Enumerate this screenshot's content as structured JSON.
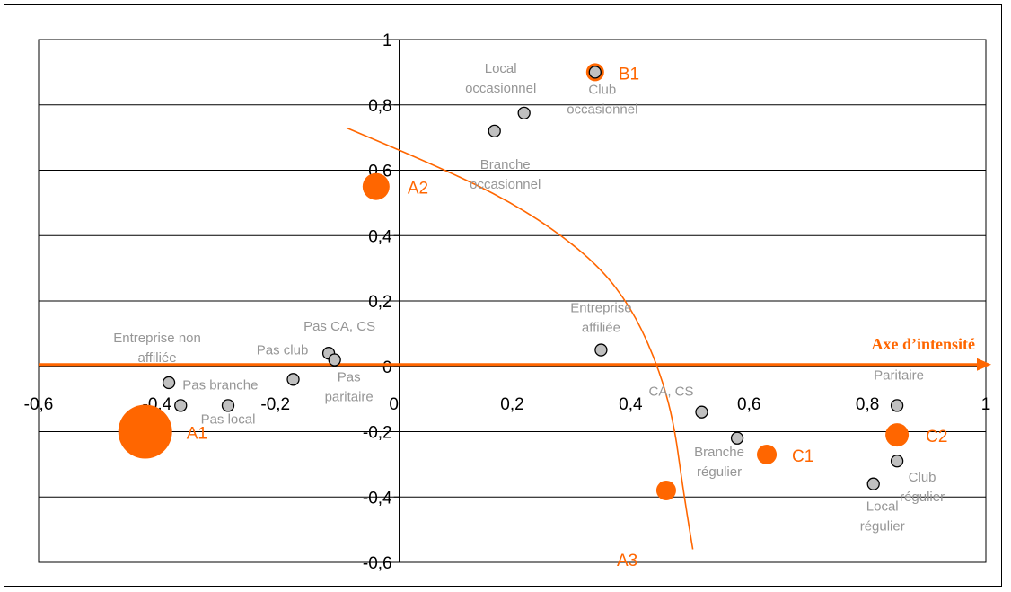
{
  "chart_data": {
    "type": "scatter",
    "title": "",
    "xlabel": "",
    "ylabel": "",
    "xlim": [
      -0.6,
      1
    ],
    "ylim": [
      -0.6,
      1
    ],
    "x_ticks": [
      "-0,6",
      "-0,4",
      "-0,2",
      "0",
      "0,2",
      "0,4",
      "0,6",
      "0,8",
      "1"
    ],
    "y_ticks": [
      "-0,6",
      "-0,4",
      "-0,2",
      "0",
      "0,2",
      "0,4",
      "0,6",
      "0,8",
      "1"
    ],
    "grid": "horizontal",
    "intensity_axis": {
      "label": "Axe d’intensité",
      "color": "#ff6600"
    },
    "points": [
      {
        "x": -0.38,
        "y": -0.05,
        "lines": [
          "Entreprise non",
          "affiliée"
        ]
      },
      {
        "x": -0.36,
        "y": -0.12,
        "lines": [
          "Pas branche"
        ]
      },
      {
        "x": -0.28,
        "y": -0.12,
        "lines": [
          "Pas local"
        ]
      },
      {
        "x": -0.17,
        "y": -0.04,
        "lines": [
          "Pas club"
        ]
      },
      {
        "x": -0.11,
        "y": 0.04,
        "lines": [
          "Pas CA, CS"
        ]
      },
      {
        "x": -0.1,
        "y": 0.02,
        "lines": [
          "Pas",
          "paritaire"
        ]
      },
      {
        "x": 0.17,
        "y": 0.72,
        "lines": [
          "Branche",
          "occasionnel"
        ]
      },
      {
        "x": 0.22,
        "y": 0.775,
        "lines": [
          "Local",
          "occasionnel"
        ]
      },
      {
        "x": 0.34,
        "y": 0.9,
        "lines": [
          "Club",
          "occasionnel"
        ]
      },
      {
        "x": 0.35,
        "y": 0.05,
        "lines": [
          "Entreprise",
          "affiliée"
        ]
      },
      {
        "x": 0.52,
        "y": -0.14,
        "lines": [
          "CA, CS"
        ]
      },
      {
        "x": 0.58,
        "y": -0.22,
        "lines": [
          "Branche",
          "régulier"
        ]
      },
      {
        "x": 0.81,
        "y": -0.36,
        "lines": [
          "Local",
          "régulier"
        ]
      },
      {
        "x": 0.85,
        "y": -0.29,
        "lines": [
          "Club",
          "régulier"
        ]
      },
      {
        "x": 0.85,
        "y": -0.12,
        "lines": [
          "Paritaire"
        ]
      }
    ],
    "groups": [
      {
        "name": "A1",
        "x": -0.42,
        "y": -0.2,
        "size": "large"
      },
      {
        "name": "A2",
        "x": -0.03,
        "y": 0.55,
        "size": "medium"
      },
      {
        "name": "A3",
        "x": 0.46,
        "y": -0.38,
        "size": "small"
      },
      {
        "name": "B1",
        "x": 0.34,
        "y": 0.9,
        "size": "ring"
      },
      {
        "name": "C1",
        "x": 0.63,
        "y": -0.27,
        "size": "small"
      },
      {
        "name": "C2",
        "x": 0.85,
        "y": -0.21,
        "size": "small"
      }
    ],
    "curve": [
      [
        -0.08,
        0.73
      ],
      [
        0.05,
        0.63
      ],
      [
        0.17,
        0.53
      ],
      [
        0.27,
        0.42
      ],
      [
        0.35,
        0.3
      ],
      [
        0.4,
        0.18
      ],
      [
        0.435,
        0.05
      ],
      [
        0.46,
        -0.08
      ],
      [
        0.475,
        -0.2
      ],
      [
        0.485,
        -0.33
      ],
      [
        0.495,
        -0.45
      ],
      [
        0.505,
        -0.56
      ]
    ],
    "colors": {
      "accent": "#ff6600",
      "point_fill": "#c0c0c0",
      "point_label": "#969696",
      "grid": "#000000"
    }
  }
}
